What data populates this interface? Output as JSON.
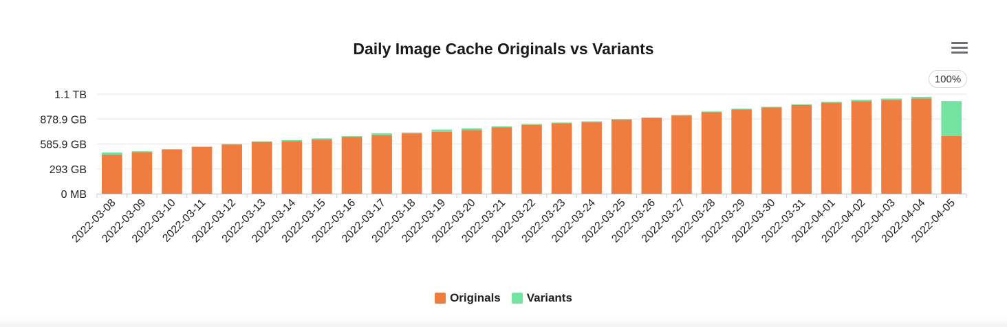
{
  "toolbar": {
    "zoom_label": "100%",
    "menu_icon": "hamburger-menu-icon"
  },
  "colors": {
    "originals": "#ef7d40",
    "variants": "#74e2a1",
    "grid": "#e6e6e6",
    "axis": "#cccccc",
    "text": "#222222"
  },
  "chart_data": {
    "type": "bar",
    "stacked": true,
    "title": "Daily Image Cache Originals vs Variants",
    "xlabel": "",
    "ylabel": "",
    "yticks": [
      "0 MB",
      "293 GB",
      "585.9 GB",
      "878.9 GB",
      "1.1 TB"
    ],
    "ylim_gb": [
      0,
      1171.9
    ],
    "grid": true,
    "legend_position": "bottom-center",
    "categories": [
      "2022-03-08",
      "2022-03-09",
      "2022-03-10",
      "2022-03-11",
      "2022-03-12",
      "2022-03-13",
      "2022-03-14",
      "2022-03-15",
      "2022-03-16",
      "2022-03-17",
      "2022-03-18",
      "2022-03-19",
      "2022-03-20",
      "2022-03-21",
      "2022-03-22",
      "2022-03-23",
      "2022-03-24",
      "2022-03-25",
      "2022-03-26",
      "2022-03-27",
      "2022-03-28",
      "2022-03-29",
      "2022-03-30",
      "2022-03-31",
      "2022-04-01",
      "2022-04-02",
      "2022-04-03",
      "2022-04-04",
      "2022-04-05"
    ],
    "series": [
      {
        "name": "Originals",
        "unit": "GB",
        "values": [
          460,
          490,
          520,
          550,
          580,
          610,
          620,
          640,
          670,
          690,
          710,
          730,
          750,
          780,
          810,
          830,
          840,
          870,
          890,
          920,
          960,
          990,
          1015,
          1045,
          1070,
          1090,
          1105,
          1120,
          680
        ]
      },
      {
        "name": "Variants",
        "unit": "GB",
        "values": [
          25,
          10,
          5,
          5,
          5,
          5,
          12,
          12,
          8,
          20,
          10,
          25,
          20,
          12,
          12,
          8,
          12,
          10,
          8,
          8,
          8,
          10,
          8,
          8,
          12,
          15,
          15,
          20,
          410
        ]
      }
    ]
  },
  "legend": {
    "originals_label": "Originals",
    "variants_label": "Variants"
  }
}
